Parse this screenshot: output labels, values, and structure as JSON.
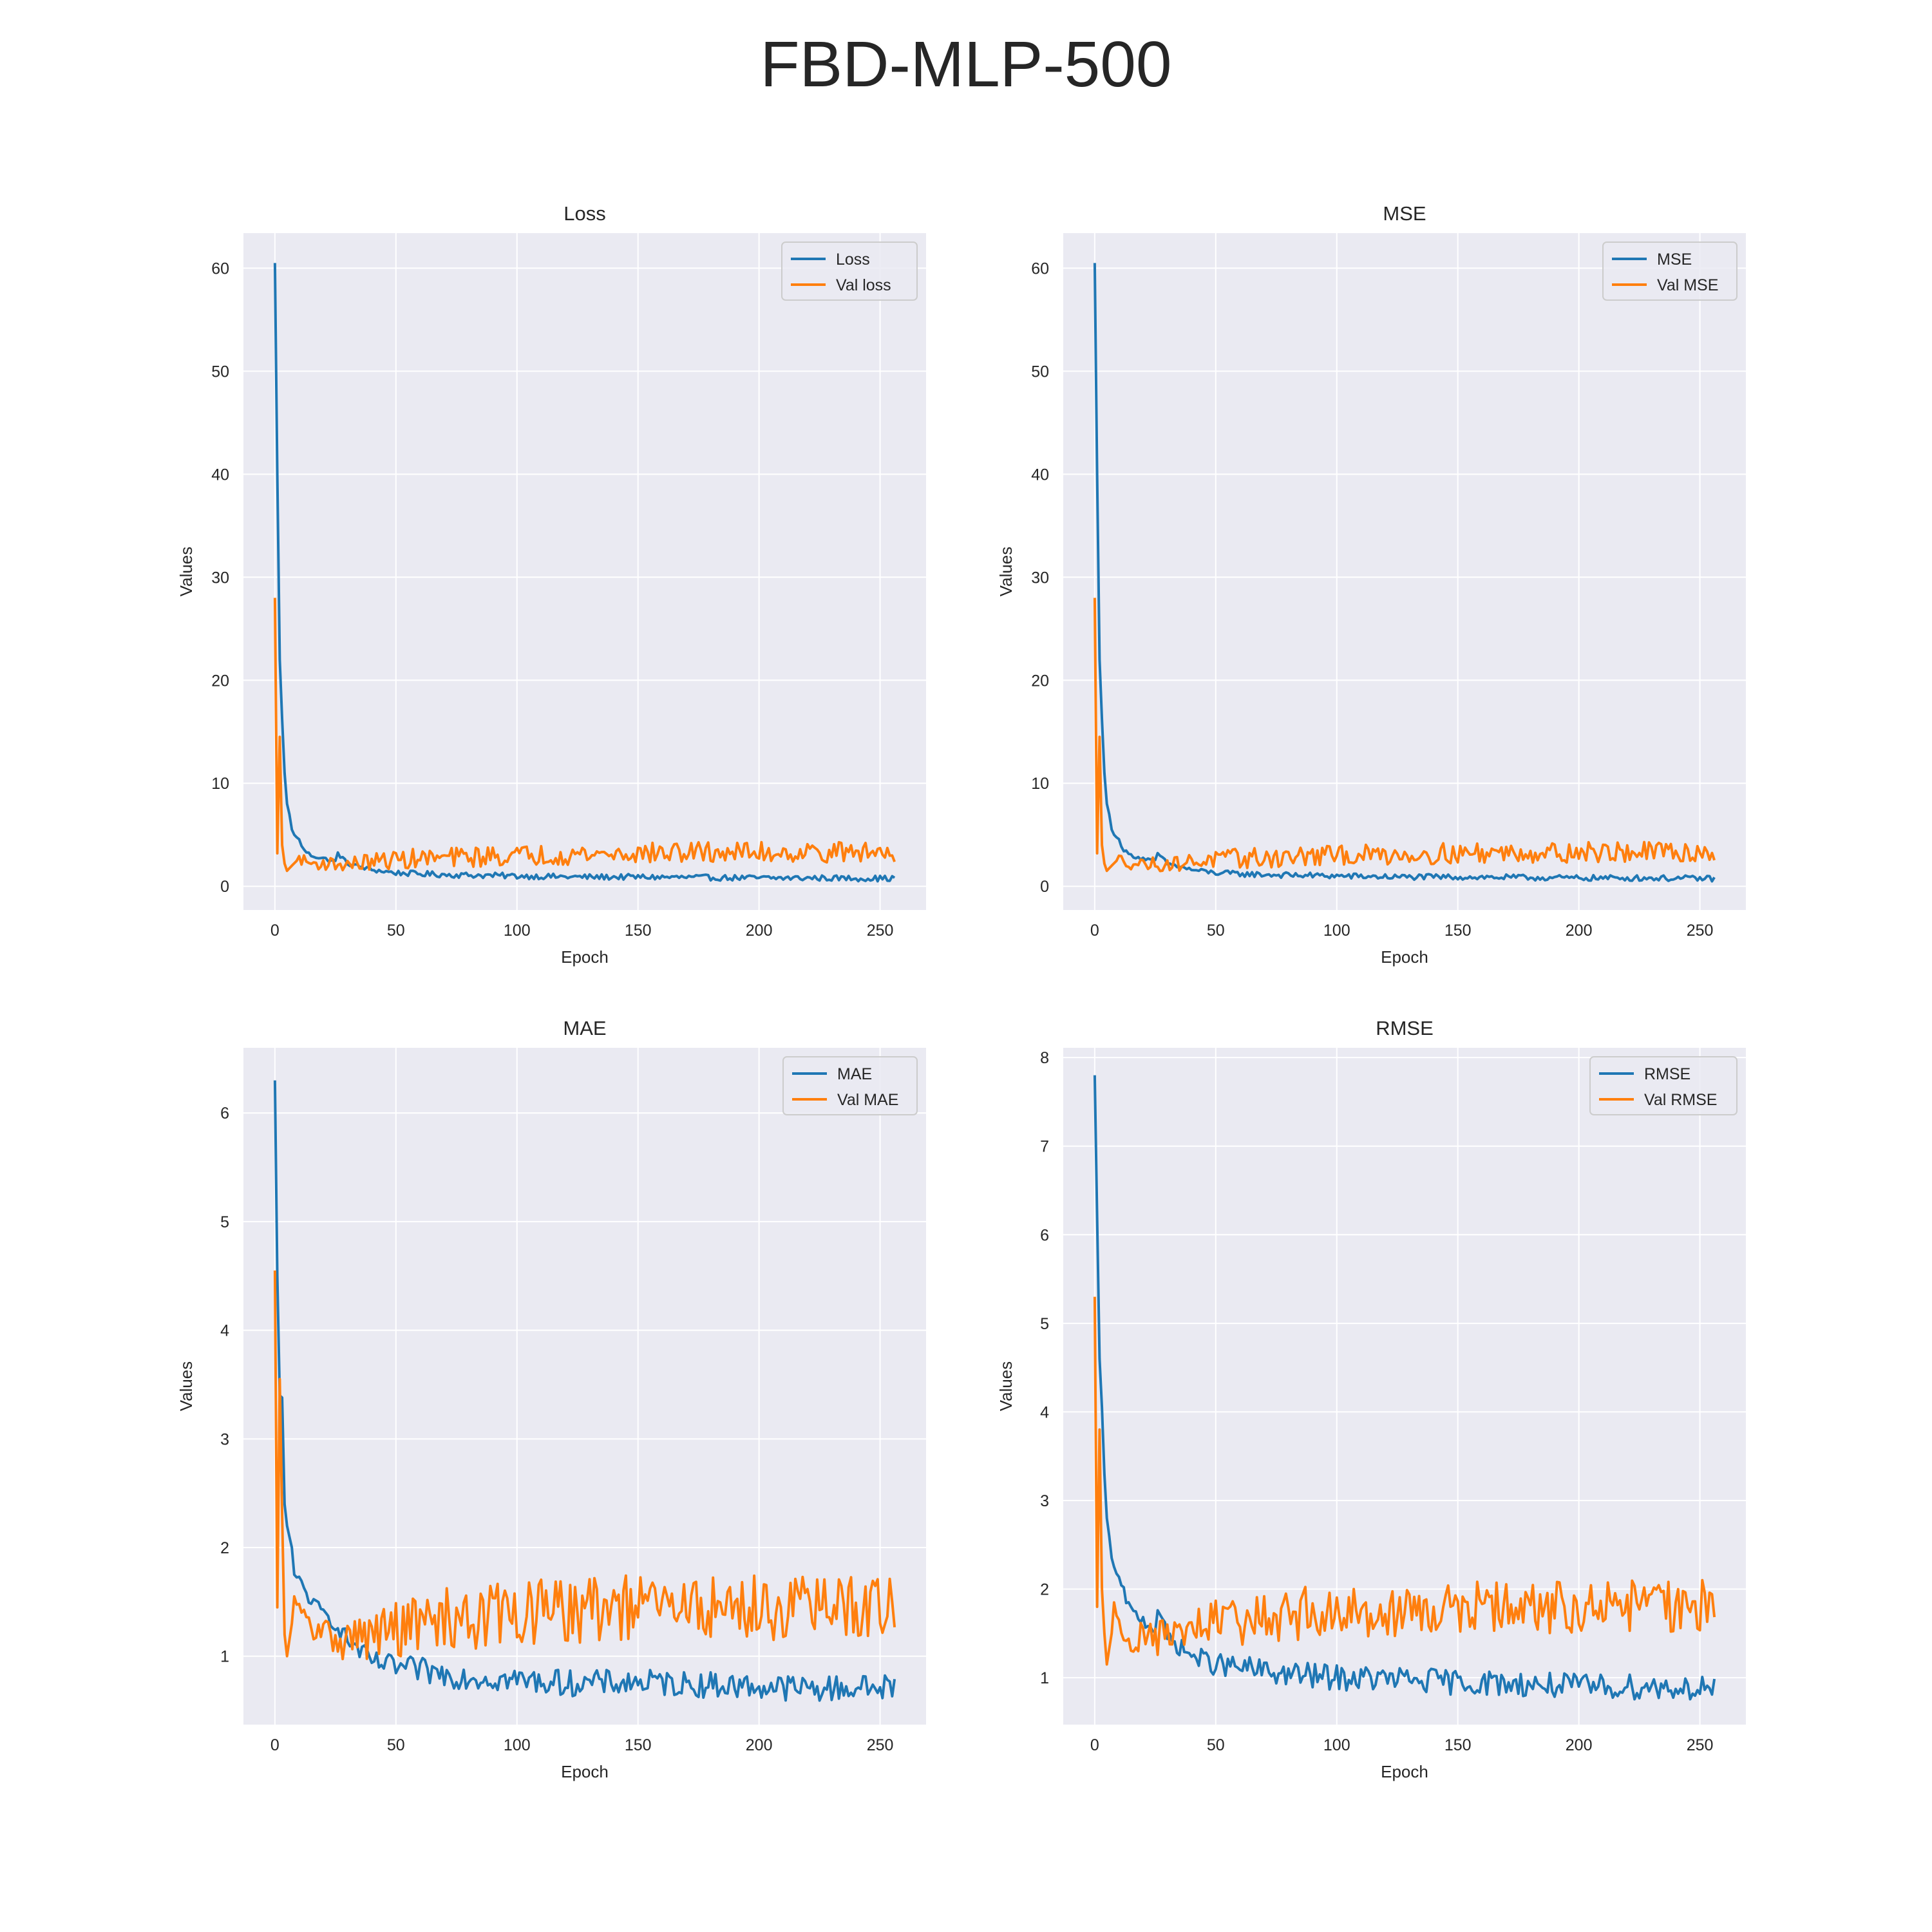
{
  "figure": {
    "title": "FBD-MLP-500"
  },
  "colors": {
    "train": "#1f77b4",
    "val": "#ff7f0e",
    "bg": "#eaeaf2",
    "grid": "#ffffff"
  },
  "chart_data": [
    {
      "type": "line",
      "title": "Loss",
      "xlabel": "Epoch",
      "ylabel": "Values",
      "xlim": [
        -13,
        269
      ],
      "ylim": [
        -2.3,
        63.4
      ],
      "xticks": [
        0,
        50,
        100,
        150,
        200,
        250
      ],
      "yticks": [
        0,
        10,
        20,
        30,
        40,
        50,
        60
      ],
      "legend_position": "top-right",
      "series": [
        {
          "name": "Loss",
          "role": "train",
          "points": [
            [
              0,
              60.5
            ],
            [
              1,
              40
            ],
            [
              2,
              22
            ],
            [
              3,
              16.2
            ],
            [
              4,
              11
            ],
            [
              5,
              8
            ],
            [
              6,
              7
            ],
            [
              7,
              5.5
            ],
            [
              8,
              5
            ],
            [
              10,
              4.5
            ],
            [
              12,
              3.5
            ],
            [
              15,
              3
            ],
            [
              18,
              2.8
            ],
            [
              20,
              2.7
            ],
            [
              25,
              2.4
            ],
            [
              26,
              3.2
            ],
            [
              30,
              2.2
            ],
            [
              35,
              1.9
            ],
            [
              40,
              1.6
            ],
            [
              50,
              1.3
            ],
            [
              60,
              1.2
            ],
            [
              75,
              1.1
            ],
            [
              100,
              1.0
            ],
            [
              125,
              0.9
            ],
            [
              150,
              0.9
            ],
            [
              175,
              0.85
            ],
            [
              200,
              0.8
            ],
            [
              225,
              0.8
            ],
            [
              256,
              0.75
            ]
          ],
          "noise": [
            0.15,
            0.35
          ]
        },
        {
          "name": "Val loss",
          "role": "val",
          "points": [
            [
              0,
              28
            ],
            [
              1,
              3.2
            ],
            [
              2,
              14.5
            ],
            [
              3,
              4
            ],
            [
              4,
              2.2
            ],
            [
              5,
              1.5
            ],
            [
              7,
              2
            ],
            [
              10,
              2.7
            ],
            [
              15,
              2.2
            ],
            [
              20,
              2.2
            ],
            [
              30,
              2.1
            ],
            [
              40,
              2.4
            ],
            [
              50,
              2.6
            ],
            [
              75,
              2.8
            ],
            [
              100,
              3
            ],
            [
              125,
              3.1
            ],
            [
              150,
              3.2
            ],
            [
              175,
              3.3
            ],
            [
              200,
              3.3
            ],
            [
              225,
              3.3
            ],
            [
              256,
              3.3
            ]
          ],
          "noise": [
            0.4,
            1.0
          ]
        }
      ]
    },
    {
      "type": "line",
      "title": "MSE",
      "xlabel": "Epoch",
      "ylabel": "Values",
      "xlim": [
        -13,
        269
      ],
      "ylim": [
        -2.3,
        63.4
      ],
      "xticks": [
        0,
        50,
        100,
        150,
        200,
        250
      ],
      "yticks": [
        0,
        10,
        20,
        30,
        40,
        50,
        60
      ],
      "legend_position": "top-right",
      "series": [
        {
          "name": "MSE",
          "role": "train",
          "points": [
            [
              0,
              60.5
            ],
            [
              1,
              40
            ],
            [
              2,
              22
            ],
            [
              3,
              16.2
            ],
            [
              4,
              11
            ],
            [
              5,
              8
            ],
            [
              6,
              7
            ],
            [
              7,
              5.5
            ],
            [
              8,
              5
            ],
            [
              10,
              4.5
            ],
            [
              12,
              3.5
            ],
            [
              15,
              3
            ],
            [
              18,
              2.8
            ],
            [
              20,
              2.7
            ],
            [
              25,
              2.4
            ],
            [
              26,
              3.2
            ],
            [
              30,
              2.2
            ],
            [
              35,
              1.9
            ],
            [
              40,
              1.6
            ],
            [
              50,
              1.3
            ],
            [
              60,
              1.2
            ],
            [
              75,
              1.1
            ],
            [
              100,
              1.0
            ],
            [
              125,
              0.9
            ],
            [
              150,
              0.9
            ],
            [
              175,
              0.85
            ],
            [
              200,
              0.8
            ],
            [
              225,
              0.8
            ],
            [
              256,
              0.75
            ]
          ],
          "noise": [
            0.15,
            0.35
          ]
        },
        {
          "name": "Val MSE",
          "role": "val",
          "points": [
            [
              0,
              28
            ],
            [
              1,
              3.2
            ],
            [
              2,
              14.5
            ],
            [
              3,
              4
            ],
            [
              4,
              2.2
            ],
            [
              5,
              1.5
            ],
            [
              7,
              2
            ],
            [
              10,
              2.7
            ],
            [
              15,
              2.2
            ],
            [
              20,
              2.2
            ],
            [
              30,
              2.1
            ],
            [
              40,
              2.4
            ],
            [
              50,
              2.6
            ],
            [
              75,
              2.8
            ],
            [
              100,
              3
            ],
            [
              125,
              3.1
            ],
            [
              150,
              3.2
            ],
            [
              175,
              3.3
            ],
            [
              200,
              3.3
            ],
            [
              225,
              3.3
            ],
            [
              256,
              3.3
            ]
          ],
          "noise": [
            0.4,
            1.0
          ]
        }
      ]
    },
    {
      "type": "line",
      "title": "MAE",
      "xlabel": "Epoch",
      "ylabel": "Values",
      "xlim": [
        -13,
        269
      ],
      "ylim": [
        0.37,
        6.6
      ],
      "xticks": [
        0,
        50,
        100,
        150,
        200,
        250
      ],
      "yticks": [
        1,
        2,
        3,
        4,
        5,
        6
      ],
      "legend_position": "top-right",
      "series": [
        {
          "name": "MAE",
          "role": "train",
          "points": [
            [
              0,
              6.3
            ],
            [
              1,
              4.5
            ],
            [
              2,
              3.4
            ],
            [
              3,
              3.38
            ],
            [
              4,
              2.4
            ],
            [
              5,
              2.2
            ],
            [
              7,
              2.0
            ],
            [
              8,
              1.75
            ],
            [
              10,
              1.7
            ],
            [
              15,
              1.5
            ],
            [
              20,
              1.4
            ],
            [
              25,
              1.3
            ],
            [
              30,
              1.15
            ],
            [
              35,
              1.05
            ],
            [
              40,
              0.95
            ],
            [
              50,
              0.9
            ],
            [
              75,
              0.82
            ],
            [
              100,
              0.78
            ],
            [
              125,
              0.75
            ],
            [
              150,
              0.76
            ],
            [
              175,
              0.74
            ],
            [
              200,
              0.72
            ],
            [
              225,
              0.7
            ],
            [
              256,
              0.72
            ]
          ],
          "noise": [
            0.05,
            0.15
          ]
        },
        {
          "name": "Val MAE",
          "role": "val",
          "points": [
            [
              0,
              4.55
            ],
            [
              1,
              1.45
            ],
            [
              2,
              3.55
            ],
            [
              3,
              2.3
            ],
            [
              4,
              1.2
            ],
            [
              5,
              1.0
            ],
            [
              7,
              1.3
            ],
            [
              8,
              1.55
            ],
            [
              10,
              1.4
            ],
            [
              15,
              1.25
            ],
            [
              20,
              1.2
            ],
            [
              30,
              1.15
            ],
            [
              40,
              1.2
            ],
            [
              50,
              1.25
            ],
            [
              75,
              1.35
            ],
            [
              100,
              1.4
            ],
            [
              125,
              1.42
            ],
            [
              150,
              1.45
            ],
            [
              175,
              1.45
            ],
            [
              200,
              1.45
            ],
            [
              225,
              1.45
            ],
            [
              256,
              1.45
            ]
          ],
          "noise": [
            0.1,
            0.3
          ]
        }
      ]
    },
    {
      "type": "line",
      "title": "RMSE",
      "xlabel": "Epoch",
      "ylabel": "Values",
      "xlim": [
        -13,
        269
      ],
      "ylim": [
        0.47,
        8.11
      ],
      "xticks": [
        0,
        50,
        100,
        150,
        200,
        250
      ],
      "yticks": [
        1,
        2,
        3,
        4,
        5,
        6,
        7,
        8
      ],
      "legend_position": "top-right",
      "series": [
        {
          "name": "RMSE",
          "role": "train",
          "points": [
            [
              0,
              7.8
            ],
            [
              1,
              6.2
            ],
            [
              2,
              4.6
            ],
            [
              3,
              4.05
            ],
            [
              4,
              3.3
            ],
            [
              5,
              2.8
            ],
            [
              6,
              2.6
            ],
            [
              7,
              2.35
            ],
            [
              8,
              2.25
            ],
            [
              10,
              2.1
            ],
            [
              15,
              1.75
            ],
            [
              20,
              1.65
            ],
            [
              25,
              1.55
            ],
            [
              26,
              1.8
            ],
            [
              30,
              1.45
            ],
            [
              35,
              1.35
            ],
            [
              40,
              1.25
            ],
            [
              50,
              1.15
            ],
            [
              75,
              1.05
            ],
            [
              100,
              1.0
            ],
            [
              125,
              0.98
            ],
            [
              150,
              0.95
            ],
            [
              175,
              0.93
            ],
            [
              200,
              0.9
            ],
            [
              225,
              0.9
            ],
            [
              256,
              0.88
            ]
          ],
          "noise": [
            0.05,
            0.18
          ]
        },
        {
          "name": "Val RMSE",
          "role": "val",
          "points": [
            [
              0,
              5.3
            ],
            [
              1,
              1.8
            ],
            [
              2,
              3.8
            ],
            [
              3,
              2.0
            ],
            [
              4,
              1.5
            ],
            [
              5,
              1.15
            ],
            [
              7,
              1.5
            ],
            [
              8,
              1.85
            ],
            [
              10,
              1.55
            ],
            [
              15,
              1.45
            ],
            [
              20,
              1.45
            ],
            [
              30,
              1.45
            ],
            [
              40,
              1.55
            ],
            [
              50,
              1.6
            ],
            [
              75,
              1.7
            ],
            [
              100,
              1.75
            ],
            [
              125,
              1.75
            ],
            [
              150,
              1.78
            ],
            [
              175,
              1.8
            ],
            [
              200,
              1.8
            ],
            [
              225,
              1.8
            ],
            [
              256,
              1.82
            ]
          ],
          "noise": [
            0.12,
            0.3
          ]
        }
      ]
    }
  ]
}
